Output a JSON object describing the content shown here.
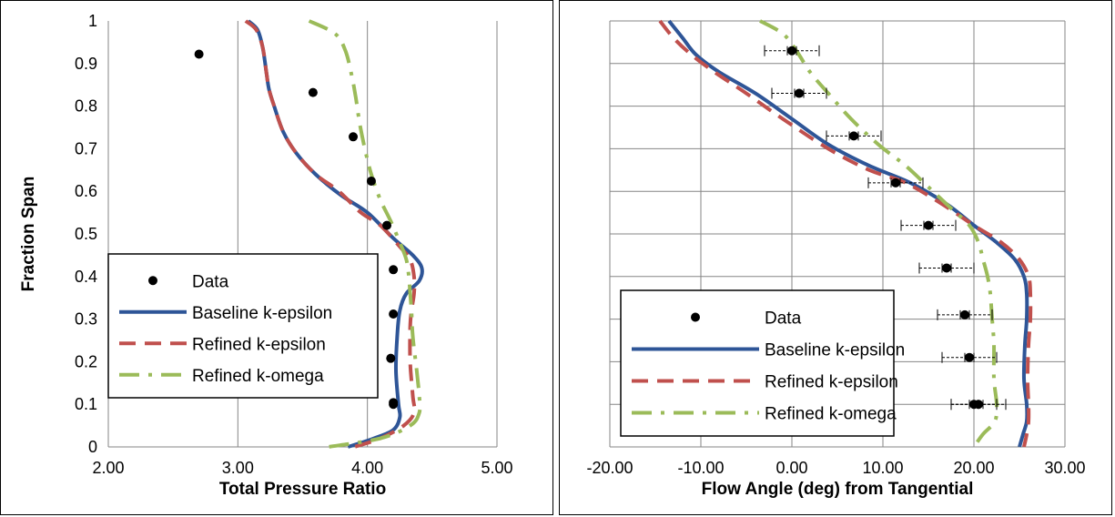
{
  "chart_data": [
    {
      "type": "line",
      "xlabel": "Total Pressure Ratio",
      "ylabel": "Fraction Span",
      "xlim": [
        2.0,
        5.0
      ],
      "ylim": [
        0,
        1
      ],
      "x_ticks": [
        "2.00",
        "3.00",
        "4.00",
        "5.00"
      ],
      "y_ticks": [
        "0",
        "0.1",
        "0.2",
        "0.3",
        "0.4",
        "0.5",
        "0.6",
        "0.7",
        "0.8",
        "0.9",
        "1"
      ],
      "grid": "vertical",
      "legend_position": "lower-left",
      "legend": [
        "Data",
        "Baseline k-epsilon",
        "Refined k-epsilon",
        "Refined k-omega"
      ],
      "series": [
        {
          "name": "Data",
          "style": "points",
          "color": "#000000",
          "points": [
            [
              2.7,
              0.922
            ],
            [
              3.58,
              0.832
            ],
            [
              3.89,
              0.728
            ],
            [
              4.03,
              0.624
            ],
            [
              4.15,
              0.52
            ],
            [
              4.2,
              0.416
            ],
            [
              4.2,
              0.312
            ],
            [
              4.18,
              0.208
            ],
            [
              4.2,
              0.104
            ],
            [
              4.2,
              0.1
            ]
          ]
        },
        {
          "name": "Baseline k-epsilon",
          "style": "solid",
          "color": "#2e5597",
          "points": [
            [
              3.08,
              1.0
            ],
            [
              3.15,
              0.98
            ],
            [
              3.19,
              0.94
            ],
            [
              3.22,
              0.88
            ],
            [
              3.24,
              0.84
            ],
            [
              3.28,
              0.8
            ],
            [
              3.35,
              0.74
            ],
            [
              3.45,
              0.69
            ],
            [
              3.6,
              0.64
            ],
            [
              3.8,
              0.59
            ],
            [
              4.0,
              0.55
            ],
            [
              4.2,
              0.49
            ],
            [
              4.35,
              0.45
            ],
            [
              4.42,
              0.42
            ],
            [
              4.4,
              0.39
            ],
            [
              4.3,
              0.36
            ],
            [
              4.25,
              0.32
            ],
            [
              4.23,
              0.26
            ],
            [
              4.22,
              0.18
            ],
            [
              4.24,
              0.1
            ],
            [
              4.25,
              0.07
            ],
            [
              4.2,
              0.04
            ],
            [
              4.05,
              0.02
            ],
            [
              3.85,
              0.0
            ]
          ]
        },
        {
          "name": "Refined k-epsilon",
          "style": "dashed",
          "color": "#c0504d",
          "points": [
            [
              3.06,
              1.0
            ],
            [
              3.14,
              0.98
            ],
            [
              3.19,
              0.94
            ],
            [
              3.22,
              0.88
            ],
            [
              3.24,
              0.84
            ],
            [
              3.28,
              0.8
            ],
            [
              3.35,
              0.74
            ],
            [
              3.45,
              0.69
            ],
            [
              3.6,
              0.64
            ],
            [
              3.78,
              0.6
            ],
            [
              3.95,
              0.55
            ],
            [
              4.1,
              0.52
            ],
            [
              4.25,
              0.47
            ],
            [
              4.33,
              0.44
            ],
            [
              4.36,
              0.4
            ],
            [
              4.36,
              0.36
            ],
            [
              4.34,
              0.32
            ],
            [
              4.33,
              0.28
            ],
            [
              4.33,
              0.2
            ],
            [
              4.35,
              0.12
            ],
            [
              4.36,
              0.08
            ],
            [
              4.28,
              0.05
            ],
            [
              4.1,
              0.02
            ],
            [
              3.9,
              0.0
            ]
          ]
        },
        {
          "name": "Refined k-omega",
          "style": "dash-dot",
          "color": "#9bbb59",
          "points": [
            [
              3.55,
              1.0
            ],
            [
              3.75,
              0.97
            ],
            [
              3.83,
              0.93
            ],
            [
              3.88,
              0.87
            ],
            [
              3.91,
              0.82
            ],
            [
              3.94,
              0.76
            ],
            [
              3.98,
              0.7
            ],
            [
              4.03,
              0.64
            ],
            [
              4.1,
              0.58
            ],
            [
              4.18,
              0.53
            ],
            [
              4.25,
              0.48
            ],
            [
              4.3,
              0.44
            ],
            [
              4.32,
              0.4
            ],
            [
              4.33,
              0.36
            ],
            [
              4.34,
              0.32
            ],
            [
              4.35,
              0.26
            ],
            [
              4.38,
              0.18
            ],
            [
              4.4,
              0.12
            ],
            [
              4.4,
              0.08
            ],
            [
              4.33,
              0.05
            ],
            [
              4.1,
              0.02
            ],
            [
              3.7,
              0.0
            ]
          ]
        }
      ]
    },
    {
      "type": "line",
      "xlabel": "Flow Angle (deg) from Tangential",
      "ylabel": "",
      "xlim": [
        -20,
        30
      ],
      "ylim": [
        0,
        1
      ],
      "x_ticks": [
        "-20.00",
        "-10.00",
        "0.00",
        "10.00",
        "20.00",
        "30.00"
      ],
      "grid": "both",
      "legend_position": "lower-left",
      "legend": [
        "Data",
        "Baseline k-epsilon",
        "Refined k-epsilon",
        "Refined k-omega"
      ],
      "series": [
        {
          "name": "Data",
          "style": "points",
          "color": "#000000",
          "error_bars": "horizontal",
          "points": [
            [
              0.0,
              0.93,
              3.0
            ],
            [
              0.8,
              0.83,
              3.0
            ],
            [
              6.8,
              0.73,
              3.0
            ],
            [
              11.4,
              0.62,
              3.0
            ],
            [
              15.0,
              0.52,
              3.0
            ],
            [
              17.0,
              0.42,
              3.0
            ],
            [
              19.0,
              0.31,
              3.0
            ],
            [
              19.5,
              0.21,
              3.0
            ],
            [
              20.5,
              0.1,
              3.0
            ],
            [
              20.0,
              0.1,
              2.5
            ]
          ]
        },
        {
          "name": "Baseline k-epsilon",
          "style": "solid",
          "color": "#2e5597",
          "points": [
            [
              -13.5,
              1.0
            ],
            [
              -12.0,
              0.96
            ],
            [
              -10.5,
              0.92
            ],
            [
              -8.0,
              0.88
            ],
            [
              -4.0,
              0.83
            ],
            [
              0.0,
              0.77
            ],
            [
              4.0,
              0.71
            ],
            [
              8.5,
              0.66
            ],
            [
              13.0,
              0.62
            ],
            [
              17.0,
              0.57
            ],
            [
              20.0,
              0.52
            ],
            [
              22.5,
              0.48
            ],
            [
              24.5,
              0.44
            ],
            [
              25.5,
              0.4
            ],
            [
              25.8,
              0.36
            ],
            [
              25.8,
              0.3
            ],
            [
              25.6,
              0.24
            ],
            [
              25.5,
              0.16
            ],
            [
              25.8,
              0.1
            ],
            [
              25.8,
              0.06
            ],
            [
              25.4,
              0.03
            ],
            [
              25.0,
              0.0
            ]
          ]
        },
        {
          "name": "Refined k-epsilon",
          "style": "dashed",
          "color": "#c0504d",
          "points": [
            [
              -14.5,
              1.0
            ],
            [
              -13.0,
              0.96
            ],
            [
              -11.0,
              0.92
            ],
            [
              -8.5,
              0.88
            ],
            [
              -5.0,
              0.83
            ],
            [
              -1.0,
              0.77
            ],
            [
              4.0,
              0.7
            ],
            [
              8.5,
              0.65
            ],
            [
              12.5,
              0.62
            ],
            [
              16.5,
              0.57
            ],
            [
              20.0,
              0.52
            ],
            [
              23.0,
              0.48
            ],
            [
              25.0,
              0.44
            ],
            [
              26.0,
              0.4
            ],
            [
              26.2,
              0.36
            ],
            [
              26.2,
              0.3
            ],
            [
              26.0,
              0.24
            ],
            [
              25.9,
              0.16
            ],
            [
              26.0,
              0.1
            ],
            [
              26.0,
              0.06
            ],
            [
              25.8,
              0.03
            ],
            [
              25.5,
              0.0
            ]
          ]
        },
        {
          "name": "Refined k-omega",
          "style": "dash-dot",
          "color": "#9bbb59",
          "points": [
            [
              -3.5,
              1.0
            ],
            [
              -1.0,
              0.97
            ],
            [
              0.5,
              0.93
            ],
            [
              2.0,
              0.88
            ],
            [
              4.0,
              0.83
            ],
            [
              6.5,
              0.77
            ],
            [
              9.5,
              0.71
            ],
            [
              12.5,
              0.66
            ],
            [
              15.0,
              0.61
            ],
            [
              17.5,
              0.56
            ],
            [
              19.5,
              0.52
            ],
            [
              20.5,
              0.48
            ],
            [
              21.0,
              0.44
            ],
            [
              21.5,
              0.4
            ],
            [
              21.8,
              0.36
            ],
            [
              22.0,
              0.3
            ],
            [
              22.2,
              0.24
            ],
            [
              22.2,
              0.16
            ],
            [
              22.5,
              0.1
            ],
            [
              22.3,
              0.06
            ],
            [
              21.0,
              0.03
            ],
            [
              20.0,
              0.0
            ]
          ]
        }
      ]
    }
  ]
}
